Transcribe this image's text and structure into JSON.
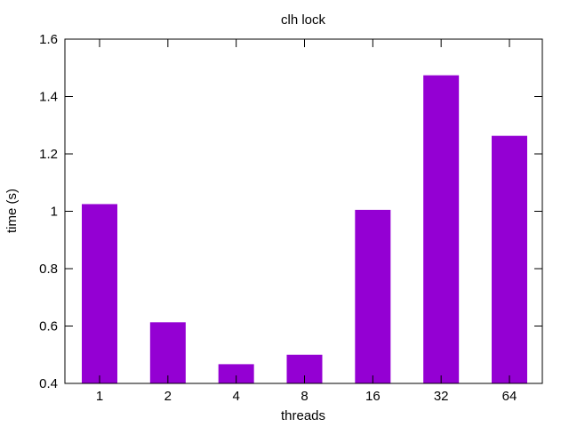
{
  "chart_data": {
    "type": "bar",
    "title": "clh lock",
    "xlabel": "threads",
    "ylabel": "time (s)",
    "categories": [
      "1",
      "2",
      "4",
      "8",
      "16",
      "32",
      "64"
    ],
    "values": [
      1.025,
      0.613,
      0.467,
      0.5,
      1.005,
      1.474,
      1.263
    ],
    "ylim": [
      0.4,
      1.6
    ],
    "yticks": [
      0.4,
      0.6,
      0.8,
      1,
      1.2,
      1.4,
      1.6
    ],
    "ytick_labels": [
      "0.4",
      "0.6",
      "0.8",
      "1",
      "1.2",
      "1.4",
      "1.6"
    ],
    "grid": false,
    "bar_color": "#9400d3",
    "axis_color": "#000000"
  }
}
